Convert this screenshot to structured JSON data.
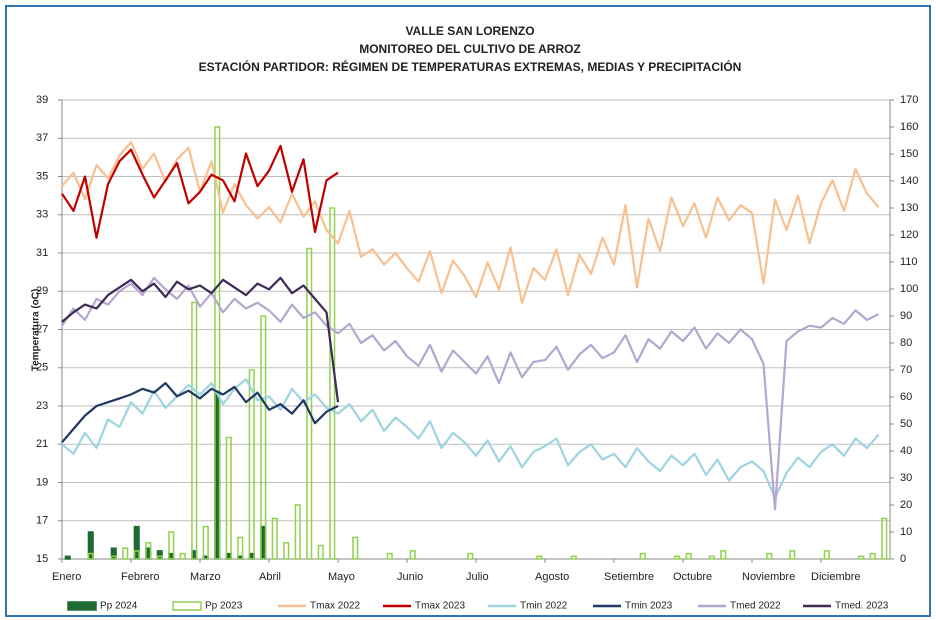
{
  "chart_data": {
    "type": "line",
    "title": "VALLE SAN LORENZO",
    "subtitles": [
      "MONITOREO DEL CULTIVO DE ARROZ",
      "ESTACIÓN PARTIDOR: RÉGIMEN DE TEMPERATURAS EXTREMAS, MEDIAS Y PRECIPITACIÓN"
    ],
    "y_label": "Temperatura (oC)",
    "grid": true,
    "ylim": [
      15,
      39
    ],
    "yticks": [
      15,
      17,
      19,
      21,
      23,
      25,
      27,
      29,
      31,
      33,
      35,
      37,
      39
    ],
    "y2lim": [
      0,
      170
    ],
    "y2ticks": [
      0,
      10,
      20,
      30,
      40,
      50,
      60,
      70,
      80,
      90,
      100,
      110,
      120,
      130,
      140,
      150,
      160,
      170
    ],
    "legend": "bottom",
    "categories": [
      "Enero",
      null,
      null,
      null,
      null,
      null,
      "Febrero",
      null,
      null,
      null,
      null,
      null,
      "Marzo",
      null,
      null,
      null,
      null,
      null,
      "Abril",
      null,
      null,
      null,
      null,
      null,
      "Mayo",
      null,
      null,
      null,
      null,
      null,
      "Junio",
      null,
      null,
      null,
      null,
      null,
      "Julio",
      null,
      null,
      null,
      null,
      null,
      "Agosto",
      null,
      null,
      null,
      null,
      null,
      "Setiembre",
      null,
      null,
      null,
      null,
      null,
      "Octubre",
      null,
      null,
      null,
      null,
      null,
      "Noviembre",
      null,
      null,
      null,
      null,
      null,
      "Diciembre",
      null,
      null,
      null,
      null,
      null
    ],
    "series": [
      {
        "name": "Pp 2024",
        "type": "bar",
        "axis": "y2",
        "color": "#1e6b32",
        "filled": true,
        "values": [
          1,
          0,
          10,
          0,
          4,
          0,
          12,
          4,
          3,
          2,
          0,
          3,
          1,
          62,
          2,
          1,
          2,
          12,
          null,
          null,
          null,
          null,
          null,
          null,
          null,
          null,
          null,
          null,
          null,
          null,
          null,
          null,
          null,
          null,
          null,
          null,
          null,
          null,
          null,
          null,
          null,
          null,
          null,
          null,
          null,
          null,
          null,
          null,
          null,
          null,
          null,
          null,
          null,
          null,
          null,
          null,
          null,
          null,
          null,
          null,
          null,
          null,
          null,
          null,
          null,
          null,
          null,
          null,
          null,
          null,
          null,
          null
        ]
      },
      {
        "name": "Pp 2023",
        "type": "bar",
        "axis": "y2",
        "color": "#92d050",
        "filled": false,
        "values": [
          0,
          0,
          2,
          0,
          1,
          4,
          3,
          6,
          1,
          10,
          2,
          95,
          12,
          160,
          45,
          8,
          70,
          90,
          15,
          6,
          20,
          115,
          5,
          130,
          0,
          8,
          0,
          0,
          2,
          0,
          3,
          0,
          0,
          0,
          0,
          2,
          0,
          0,
          0,
          0,
          0,
          1,
          0,
          0,
          1,
          0,
          0,
          0,
          0,
          0,
          2,
          0,
          0,
          1,
          2,
          0,
          1,
          3,
          0,
          0,
          0,
          2,
          0,
          3,
          0,
          0,
          3,
          0,
          0,
          1,
          2,
          15
        ]
      },
      {
        "name": "Tmax 2022",
        "type": "line",
        "color": "#f8c090",
        "values": [
          34.5,
          35.2,
          33.8,
          35.6,
          34.9,
          36.1,
          36.8,
          35.4,
          36.2,
          34.7,
          35.9,
          36.5,
          34.2,
          35.8,
          33.1,
          34.6,
          33.5,
          32.8,
          33.4,
          32.6,
          34.1,
          32.9,
          33.7,
          32.2,
          31.5,
          33.2,
          30.8,
          31.2,
          30.4,
          31.0,
          30.2,
          29.5,
          31.1,
          28.9,
          30.6,
          29.8,
          28.7,
          30.5,
          29.1,
          31.3,
          28.4,
          30.2,
          29.6,
          31.2,
          28.8,
          30.9,
          29.9,
          31.8,
          30.4,
          33.5,
          29.2,
          32.8,
          31.1,
          33.9,
          32.4,
          33.6,
          31.8,
          33.9,
          32.7,
          33.5,
          33.1,
          29.4,
          33.8,
          32.2,
          34.0,
          31.5,
          33.6,
          34.8,
          33.2,
          35.4,
          34.1,
          33.4
        ]
      },
      {
        "name": "Tmax 2023",
        "type": "line",
        "color": "#c00000",
        "values": [
          34.1,
          33.2,
          35.0,
          31.8,
          34.6,
          35.8,
          36.4,
          35.1,
          33.9,
          34.8,
          35.7,
          33.6,
          34.2,
          35.1,
          34.8,
          33.7,
          36.2,
          34.5,
          35.3,
          36.6,
          34.2,
          35.9,
          32.1,
          34.8,
          35.2,
          null,
          null,
          null,
          null,
          null,
          null,
          null,
          null,
          null,
          null,
          null,
          null,
          null,
          null,
          null,
          null,
          null,
          null,
          null,
          null,
          null,
          null,
          null,
          null,
          null,
          null,
          null,
          null,
          null,
          null,
          null,
          null,
          null,
          null,
          null,
          null,
          null,
          null,
          null,
          null,
          null,
          null,
          null,
          null,
          null,
          null,
          null
        ]
      },
      {
        "name": "Tmin 2022",
        "type": "line",
        "color": "#9dd4e0",
        "values": [
          21.0,
          20.5,
          21.6,
          20.8,
          22.3,
          21.9,
          23.2,
          22.6,
          23.8,
          22.9,
          23.5,
          24.1,
          23.6,
          24.2,
          23.1,
          23.9,
          24.4,
          23.3,
          23.5,
          22.8,
          23.9,
          23.2,
          23.6,
          22.9,
          22.6,
          23.1,
          22.2,
          22.8,
          21.7,
          22.4,
          21.9,
          21.3,
          22.2,
          20.8,
          21.6,
          21.1,
          20.4,
          21.2,
          20.1,
          20.9,
          19.8,
          20.6,
          20.9,
          21.3,
          19.9,
          20.6,
          21.0,
          20.2,
          20.5,
          19.8,
          20.8,
          20.1,
          19.6,
          20.4,
          19.9,
          20.5,
          19.4,
          20.2,
          19.1,
          19.8,
          20.1,
          19.6,
          18.2,
          19.5,
          20.3,
          19.8,
          20.6,
          21.0,
          20.4,
          21.3,
          20.8,
          21.5
        ]
      },
      {
        "name": "Tmin 2023",
        "type": "line",
        "color": "#1f3864",
        "values": [
          21.1,
          21.8,
          22.5,
          23.0,
          23.2,
          23.4,
          23.6,
          23.9,
          23.7,
          24.2,
          23.5,
          23.8,
          23.4,
          23.9,
          23.6,
          24.0,
          23.2,
          23.7,
          22.8,
          23.1,
          22.6,
          23.3,
          22.1,
          22.7,
          23.0,
          null,
          null,
          null,
          null,
          null,
          null,
          null,
          null,
          null,
          null,
          null,
          null,
          null,
          null,
          null,
          null,
          null,
          null,
          null,
          null,
          null,
          null,
          null,
          null,
          null,
          null,
          null,
          null,
          null,
          null,
          null,
          null,
          null,
          null,
          null,
          null,
          null,
          null,
          null,
          null,
          null,
          null,
          null,
          null,
          null,
          null,
          null
        ]
      },
      {
        "name": "Tmed 2022",
        "type": "line",
        "color": "#b4a6d0",
        "values": [
          27.2,
          28.1,
          27.5,
          28.6,
          28.3,
          29.0,
          29.4,
          28.8,
          29.7,
          29.1,
          28.6,
          29.3,
          28.2,
          28.9,
          27.9,
          28.6,
          28.1,
          28.4,
          28.0,
          27.4,
          28.3,
          27.6,
          27.9,
          27.2,
          26.8,
          27.3,
          26.3,
          26.7,
          25.9,
          26.4,
          25.6,
          25.1,
          26.2,
          24.8,
          25.9,
          25.3,
          24.7,
          25.6,
          24.2,
          25.8,
          24.5,
          25.3,
          25.4,
          26.1,
          24.9,
          25.7,
          26.2,
          25.5,
          25.8,
          26.7,
          25.3,
          26.5,
          26.0,
          26.9,
          26.4,
          27.1,
          26.0,
          26.8,
          26.3,
          27.0,
          26.5,
          25.2,
          17.6,
          26.4,
          26.9,
          27.2,
          27.1,
          27.6,
          27.3,
          28.0,
          27.5,
          27.8
        ]
      },
      {
        "name": "Tmed. 2023",
        "type": "line",
        "color": "#3d2a55",
        "values": [
          27.4,
          27.9,
          28.3,
          28.1,
          28.8,
          29.2,
          29.6,
          29.0,
          29.4,
          28.7,
          29.5,
          29.1,
          29.3,
          28.9,
          29.6,
          29.2,
          28.8,
          29.4,
          29.1,
          29.7,
          28.9,
          29.3,
          28.6,
          27.9,
          23.2,
          null,
          null,
          null,
          null,
          null,
          null,
          null,
          null,
          null,
          null,
          null,
          null,
          null,
          null,
          null,
          null,
          null,
          null,
          null,
          null,
          null,
          null,
          null,
          null,
          null,
          null,
          null,
          null,
          null,
          null,
          null,
          null,
          null,
          null,
          null,
          null,
          null,
          null,
          null,
          null,
          null,
          null,
          null,
          null,
          null,
          null,
          null
        ]
      }
    ]
  }
}
